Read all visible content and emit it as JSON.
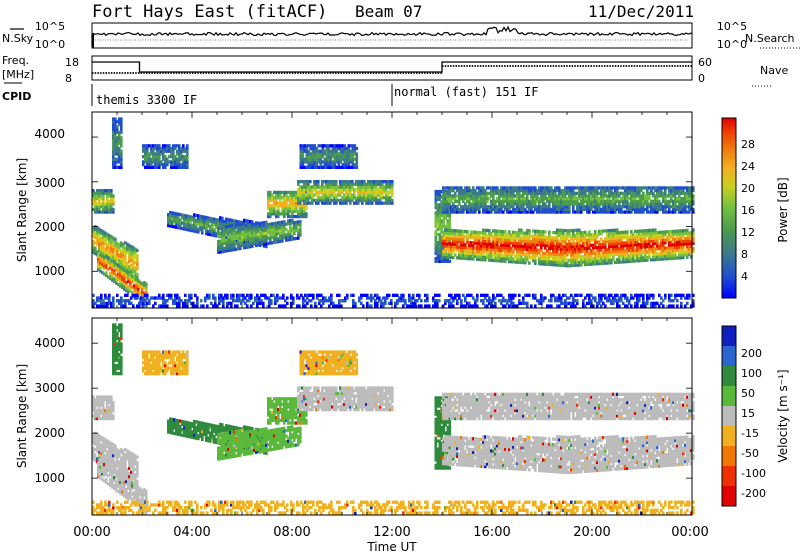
{
  "header": {
    "title": "Fort Hays East (fitACF)",
    "beam": "Beam 07",
    "date": "11/Dec/2011"
  },
  "left_labels": {
    "nsky": "N.Sky",
    "freq": "Freq.",
    "mhz": "[MHz]",
    "cpid": "CPID"
  },
  "right_labels": {
    "nsearch": "N.Search",
    "nave": "Nave"
  },
  "cpid_segments": [
    "themis 3300 IF",
    "normal (fast) 151 IF"
  ],
  "chart_data": [
    {
      "type": "line",
      "name": "noise",
      "y_ticks_left": [
        "10^5",
        "10^0"
      ],
      "y_ticks_right": [
        "10^5",
        "10^0"
      ]
    },
    {
      "type": "line",
      "name": "frequency",
      "y_ticks_left": [
        "18",
        "8"
      ],
      "y_ticks_right": [
        "60",
        "0"
      ],
      "segments": [
        {
          "x": [
            0.0,
            1.9
          ],
          "value": 12
        },
        {
          "x": [
            1.9,
            14.0
          ],
          "value": 9.6
        },
        {
          "x": [
            14.0,
            24.0
          ],
          "value": 12
        }
      ]
    },
    {
      "type": "heatmap",
      "name": "power",
      "ylabel": "Slant Range [km]",
      "yticks": [
        "4000",
        "3000",
        "2000",
        "1000"
      ],
      "ylim": [
        180,
        4560
      ],
      "colorbar": {
        "label": "Power [dB]",
        "ticks": [
          "28",
          "24",
          "20",
          "16",
          "12",
          "8",
          "4"
        ],
        "colors": [
          "#0000ff",
          "#1f4fcf",
          "#3c7a8a",
          "#4b9c4e",
          "#73c040",
          "#c8d020",
          "#f0b020",
          "#f08010",
          "#f04000",
          "#e00000"
        ]
      }
    },
    {
      "type": "heatmap",
      "name": "velocity",
      "ylabel": "Slant Range [km]",
      "yticks": [
        "4000",
        "3000",
        "2000",
        "1000"
      ],
      "ylim": [
        180,
        4560
      ],
      "colorbar": {
        "label": "Velocity [m s⁻¹]",
        "ticks": [
          "200",
          "100",
          "50",
          "15",
          "-15",
          "-50",
          "-100",
          "-200"
        ],
        "colors": [
          "#1020c0",
          "#2a66d0",
          "#2e8a3c",
          "#5ab83a",
          "#bcbcbc",
          "#f0b020",
          "#f07800",
          "#f03000",
          "#e00000"
        ]
      }
    }
  ],
  "xaxis": {
    "label": "Time UT",
    "ticks": [
      "00:00",
      "04:00",
      "08:00",
      "12:00",
      "16:00",
      "20:00",
      "00:00"
    ]
  }
}
